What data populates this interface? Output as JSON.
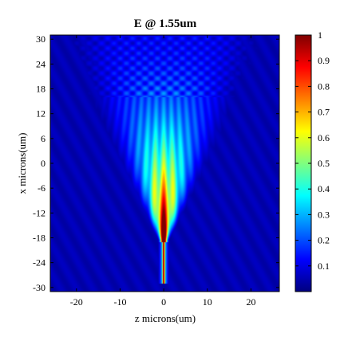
{
  "chart_data": {
    "type": "heatmap",
    "title": "E @ 1.55um",
    "xlabel": "z microns(um)",
    "ylabel": "x microns(um)",
    "xlim": [
      -26,
      26.5
    ],
    "ylim": [
      -31,
      31
    ],
    "x_ticks": [
      -20,
      -10,
      0,
      10,
      20
    ],
    "y_ticks": [
      30,
      24,
      18,
      12,
      6,
      0,
      -6,
      -12,
      -18,
      -24,
      -30
    ],
    "colorbar": {
      "min": 0,
      "max": 1,
      "ticks": [
        1,
        0.9,
        0.8,
        0.7,
        0.6,
        0.5,
        0.4,
        0.3,
        0.2,
        0.1
      ],
      "colormap": "jet"
    },
    "field": {
      "description_source": "intensity distribution",
      "background_value": 0.05,
      "waveguide_core": {
        "z_center": 0,
        "x_start": -29,
        "x_end": -16,
        "peak_value": 1.0
      },
      "beam_apex": {
        "z": 0,
        "x": -16
      },
      "fan_edges_at_top": {
        "z_left": -20,
        "z_right": 20,
        "x": 30
      },
      "fringe_region_x_min": 16
    }
  },
  "colors": {
    "jet": [
      "#00007f",
      "#0000ff",
      "#007fff",
      "#00ffff",
      "#7fff7f",
      "#ffff00",
      "#ff7f00",
      "#ff0000",
      "#7f0000"
    ]
  }
}
